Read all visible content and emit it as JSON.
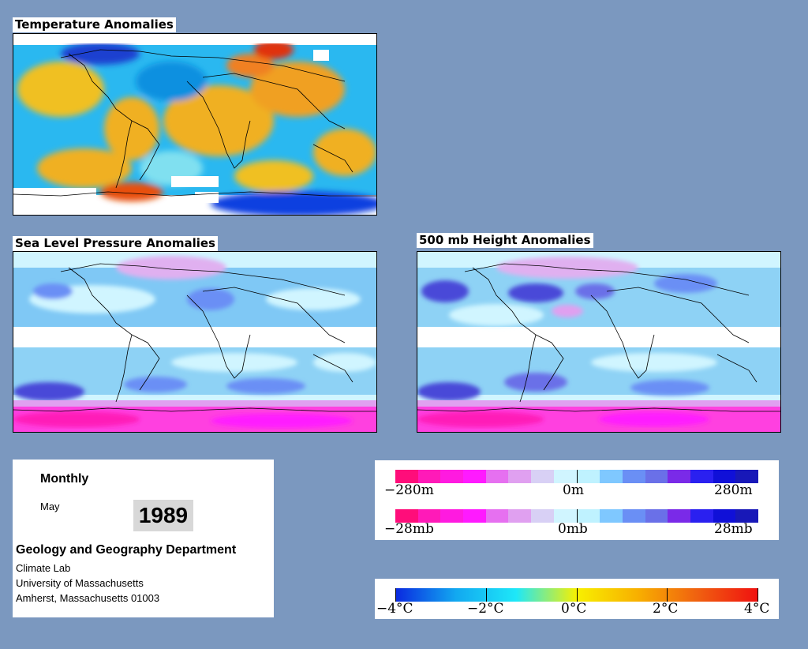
{
  "maps": {
    "temperature": {
      "title": "Temperature Anomalies"
    },
    "slp": {
      "title": "Sea Level Pressure Anomalies"
    },
    "height500": {
      "title": "500 mb Height Anomalies"
    }
  },
  "info": {
    "period": "Monthly",
    "month": "May",
    "year": "1989",
    "department": "Geology and Geography Department",
    "lab": "Climate Lab",
    "university": "University of Massachusetts",
    "address": "Amherst, Massachusetts 01003"
  },
  "legend_height": {
    "min": "−280m",
    "mid": "0m",
    "max": "280m",
    "colors": [
      "#ff0d7a",
      "#ff1ab8",
      "#ff1ae0",
      "#ff1aff",
      "#e670f0",
      "#e0a0f0",
      "#d8d0f5",
      "#d0f5ff",
      "#bff2ff",
      "#7fc8ff",
      "#6a8ff5",
      "#6a70e8",
      "#7a2ae8",
      "#2a20f0",
      "#1010d8",
      "#1818b8"
    ]
  },
  "legend_pressure": {
    "min": "−28mb",
    "mid": "0mb",
    "max": "28mb",
    "colors": [
      "#ff0d7a",
      "#ff1ab8",
      "#ff1ae0",
      "#ff1aff",
      "#e670f0",
      "#e0a0f0",
      "#d8d0f5",
      "#d0f5ff",
      "#bff2ff",
      "#7fc8ff",
      "#6a8ff5",
      "#6a70e8",
      "#7a2ae8",
      "#2a20f0",
      "#1010d8",
      "#1818b8"
    ]
  },
  "legend_temperature": {
    "labels": [
      "−4°C",
      "−2°C",
      "0°C",
      "2°C",
      "4°C"
    ],
    "gradient": [
      "#0a28e0",
      "#12a8f0",
      "#1ee8f8",
      "#f8f000",
      "#f8b000",
      "#f06010",
      "#f01010"
    ]
  }
}
